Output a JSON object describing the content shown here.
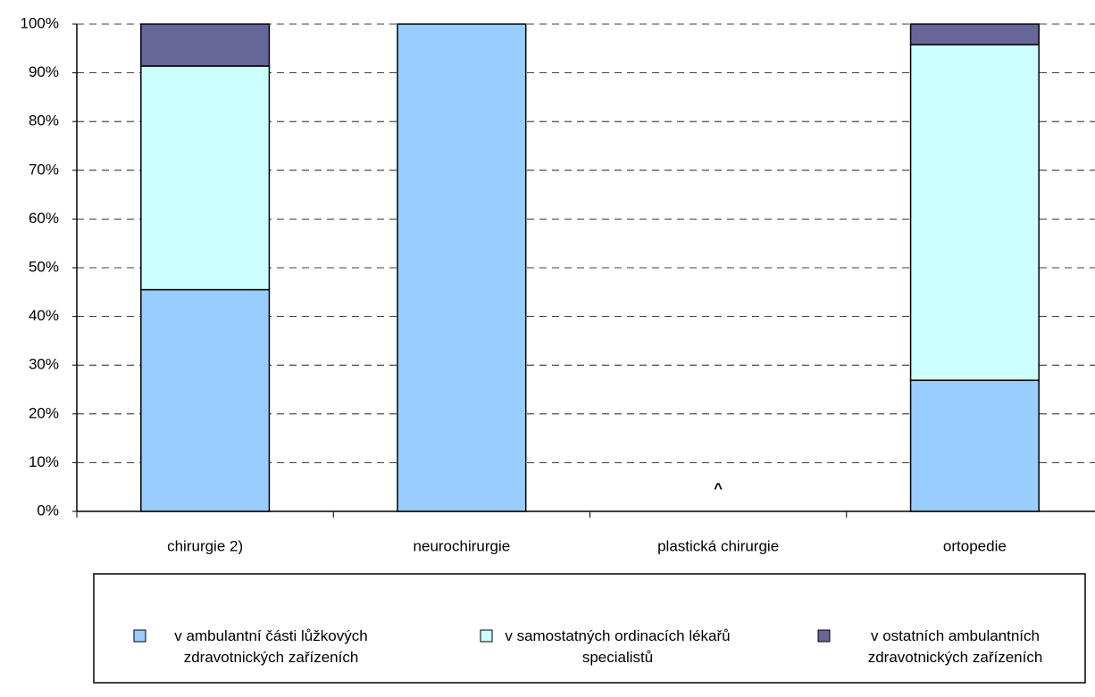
{
  "chart_data": {
    "type": "stacked_bar",
    "categories": [
      "chirurgie 2)",
      "neurochirurgie",
      "plastická chirurgie",
      "ortopedie"
    ],
    "series": [
      {
        "name": "v ambulantní části lůžkových zdravotnických zařízeních",
        "color": "#99ccff",
        "values": [
          45.5,
          100,
          null,
          26.9
        ]
      },
      {
        "name": "v samostatných ordinacích lékařů specialistů",
        "color": "#ccffff",
        "values": [
          45.9,
          0,
          null,
          68.9
        ]
      },
      {
        "name": "v ostatních ambulantních zdravotnických zařízeních",
        "color": "#666699",
        "values": [
          8.6,
          0,
          null,
          4.2
        ]
      }
    ],
    "annotations": [
      {
        "text": "^",
        "category": 2
      }
    ],
    "ylim": [
      0,
      100
    ],
    "yticks": [
      {
        "value": 0,
        "label": "0%"
      },
      {
        "value": 10,
        "label": "10%"
      },
      {
        "value": 20,
        "label": "20%"
      },
      {
        "value": 30,
        "label": "30%"
      },
      {
        "value": 40,
        "label": "40%"
      },
      {
        "value": 50,
        "label": "50%"
      },
      {
        "value": 60,
        "label": "60%"
      },
      {
        "value": 70,
        "label": "70%"
      },
      {
        "value": 80,
        "label": "80%"
      },
      {
        "value": 90,
        "label": "90%"
      },
      {
        "value": 100,
        "label": "100%"
      }
    ],
    "grid": true,
    "legend": "bottom"
  }
}
